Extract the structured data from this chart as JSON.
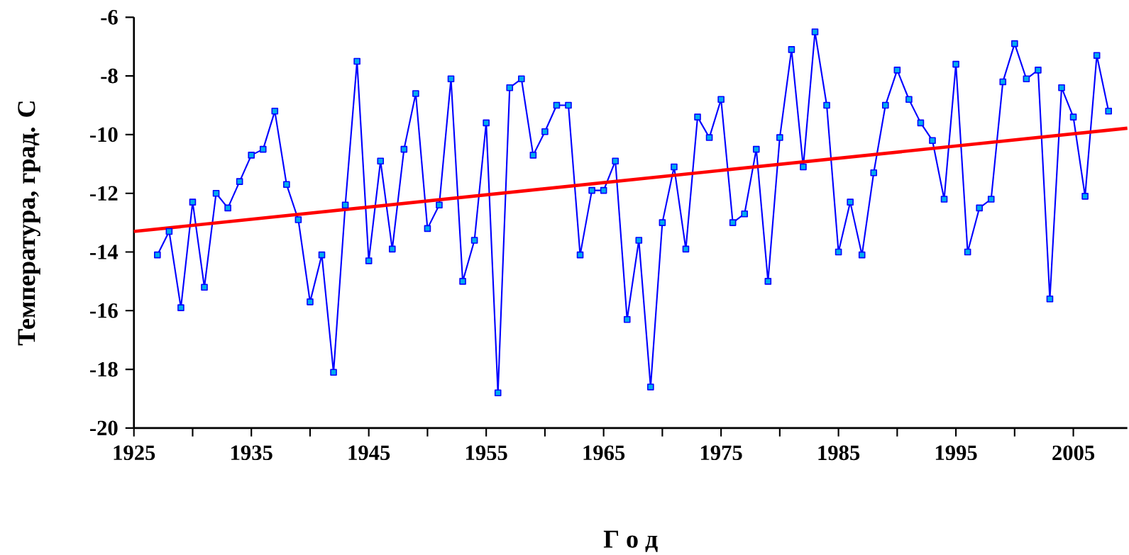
{
  "chart_data": {
    "type": "line",
    "xlabel": "Г о д",
    "ylabel": "Температура, град. С",
    "xlim": [
      1925,
      2009.6
    ],
    "ylim": [
      -20,
      -6
    ],
    "xticks": [
      1925,
      {
        "value": 1930,
        "label": null
      },
      1935,
      {
        "value": 1940,
        "label": null
      },
      1945,
      {
        "value": 1950,
        "label": null
      },
      1955,
      {
        "value": 1960,
        "label": null
      },
      1965,
      {
        "value": 1970,
        "label": null
      },
      1975,
      {
        "value": 1980,
        "label": null
      },
      1985,
      {
        "value": 1990,
        "label": null
      },
      1995,
      {
        "value": 2000,
        "label": null
      },
      2005
    ],
    "yticks": [
      -20,
      -18,
      -16,
      -14,
      -12,
      -10,
      -8,
      -6
    ],
    "grid": false,
    "marker": "square",
    "line_style": "solid",
    "series": [
      {
        "color": "#0000ff",
        "x": [
          1927,
          1928,
          1929,
          1930,
          1931,
          1932,
          1933,
          1934,
          1935,
          1936,
          1937,
          1938,
          1939,
          1940,
          1941,
          1942,
          1943,
          1944,
          1945,
          1946,
          1947,
          1948,
          1949,
          1950,
          1951,
          1952,
          1953,
          1954,
          1955,
          1956,
          1957,
          1958,
          1959,
          1960,
          1961,
          1962,
          1963,
          1964,
          1965,
          1966,
          1967,
          1968,
          1969,
          1970,
          1971,
          1972,
          1973,
          1974,
          1975,
          1976,
          1977,
          1978,
          1979,
          1980,
          1981,
          1982,
          1983,
          1984,
          1985,
          1986,
          1987,
          1988,
          1989,
          1990,
          1991,
          1992,
          1993,
          1994,
          1995,
          1996,
          1997,
          1998,
          1999,
          2000,
          2001,
          2002,
          2003,
          2004,
          2005,
          2006,
          2007,
          2008
        ],
        "values": [
          -14.1,
          -13.3,
          -15.9,
          -12.3,
          -15.2,
          -12.0,
          -12.5,
          -11.6,
          -10.7,
          -10.5,
          -9.2,
          -11.7,
          -12.9,
          -15.7,
          -14.1,
          -18.1,
          -12.4,
          -7.5,
          -14.3,
          -10.9,
          -13.9,
          -10.5,
          -8.6,
          -13.2,
          -12.4,
          -8.1,
          -15.0,
          -13.6,
          -9.6,
          -18.8,
          -8.4,
          -8.1,
          -10.7,
          -9.9,
          -9.0,
          -9.0,
          -14.1,
          -11.9,
          -11.9,
          -10.9,
          -16.3,
          -13.6,
          -18.6,
          -13.0,
          -11.1,
          -13.9,
          -9.4,
          -10.1,
          -8.8,
          -13.0,
          -12.7,
          -10.5,
          -15.0,
          -10.1,
          -7.1,
          -11.1,
          -6.5,
          -9.0,
          -14.0,
          -12.3,
          -14.1,
          -11.3,
          -9.0,
          -7.8,
          -8.8,
          -9.6,
          -10.2,
          -12.2,
          -7.6,
          -14.0,
          -12.5,
          -12.2,
          -8.2,
          -6.9,
          -8.1,
          -7.8,
          -15.6,
          -8.4,
          -9.4,
          -12.1,
          -7.3,
          -9.2
        ]
      },
      {
        "color": "#ff0000",
        "marker": "none",
        "x": [
          1925,
          2009.6
        ],
        "values": [
          -13.3,
          -9.78
        ]
      }
    ]
  }
}
